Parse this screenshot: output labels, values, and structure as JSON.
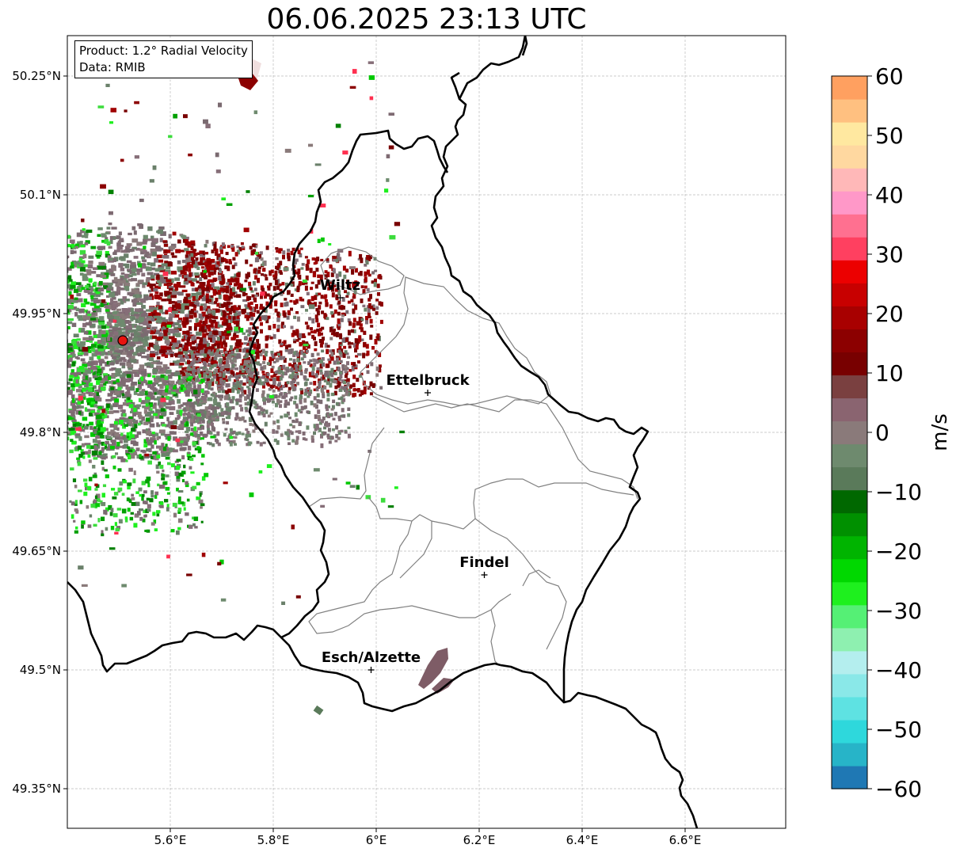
{
  "title": "06.06.2025 23:13 UTC",
  "info_box": {
    "product": "Product: 1.2° Radial Velocity",
    "data": "Data: RMIB"
  },
  "map": {
    "lon_range": [
      5.4,
      6.8
    ],
    "lat_range": [
      49.3,
      50.3
    ],
    "lon_ticks": [
      "5.6°E",
      "5.8°E",
      "6°E",
      "6.2°E",
      "6.4°E",
      "6.6°E"
    ],
    "lat_ticks": [
      "50.25°N",
      "50.1°N",
      "49.95°N",
      "49.8°N",
      "49.65°N",
      "49.5°N",
      "49.35°N"
    ],
    "grid": true,
    "radar_site_color": "#e8140f",
    "cities": [
      {
        "name": "Wiltz",
        "lon": 5.93,
        "lat": 49.97
      },
      {
        "name": "Ettelbruck",
        "lon": 6.1,
        "lat": 49.85
      },
      {
        "name": "Findel",
        "lon": 6.21,
        "lat": 49.62
      },
      {
        "name": "Esch/Alzette",
        "lon": 5.99,
        "lat": 49.5
      }
    ]
  },
  "colorbar": {
    "label": "m/s",
    "min": -60,
    "max": 60,
    "ticks": [
      "60",
      "50",
      "40",
      "30",
      "20",
      "10",
      "0",
      "−10",
      "−20",
      "−30",
      "−40",
      "−50",
      "−60"
    ],
    "colors": [
      "#1f78b4",
      "#27b4c8",
      "#2ed8dc",
      "#5ee2e2",
      "#8ae8e8",
      "#b4eeee",
      "#8ef0b0",
      "#55f075",
      "#1ef01e",
      "#00d800",
      "#00b400",
      "#009000",
      "#006800",
      "#5a7a5a",
      "#6e8a6e",
      "#8a7a7a",
      "#8a6470",
      "#7a4040",
      "#780000",
      "#8c0000",
      "#a80000",
      "#c80000",
      "#ec0000",
      "#ff4060",
      "#ff7090",
      "#ff98c8",
      "#ffb8b8",
      "#ffd8a0",
      "#ffe8a0",
      "#ffc080",
      "#ffa060"
    ]
  }
}
